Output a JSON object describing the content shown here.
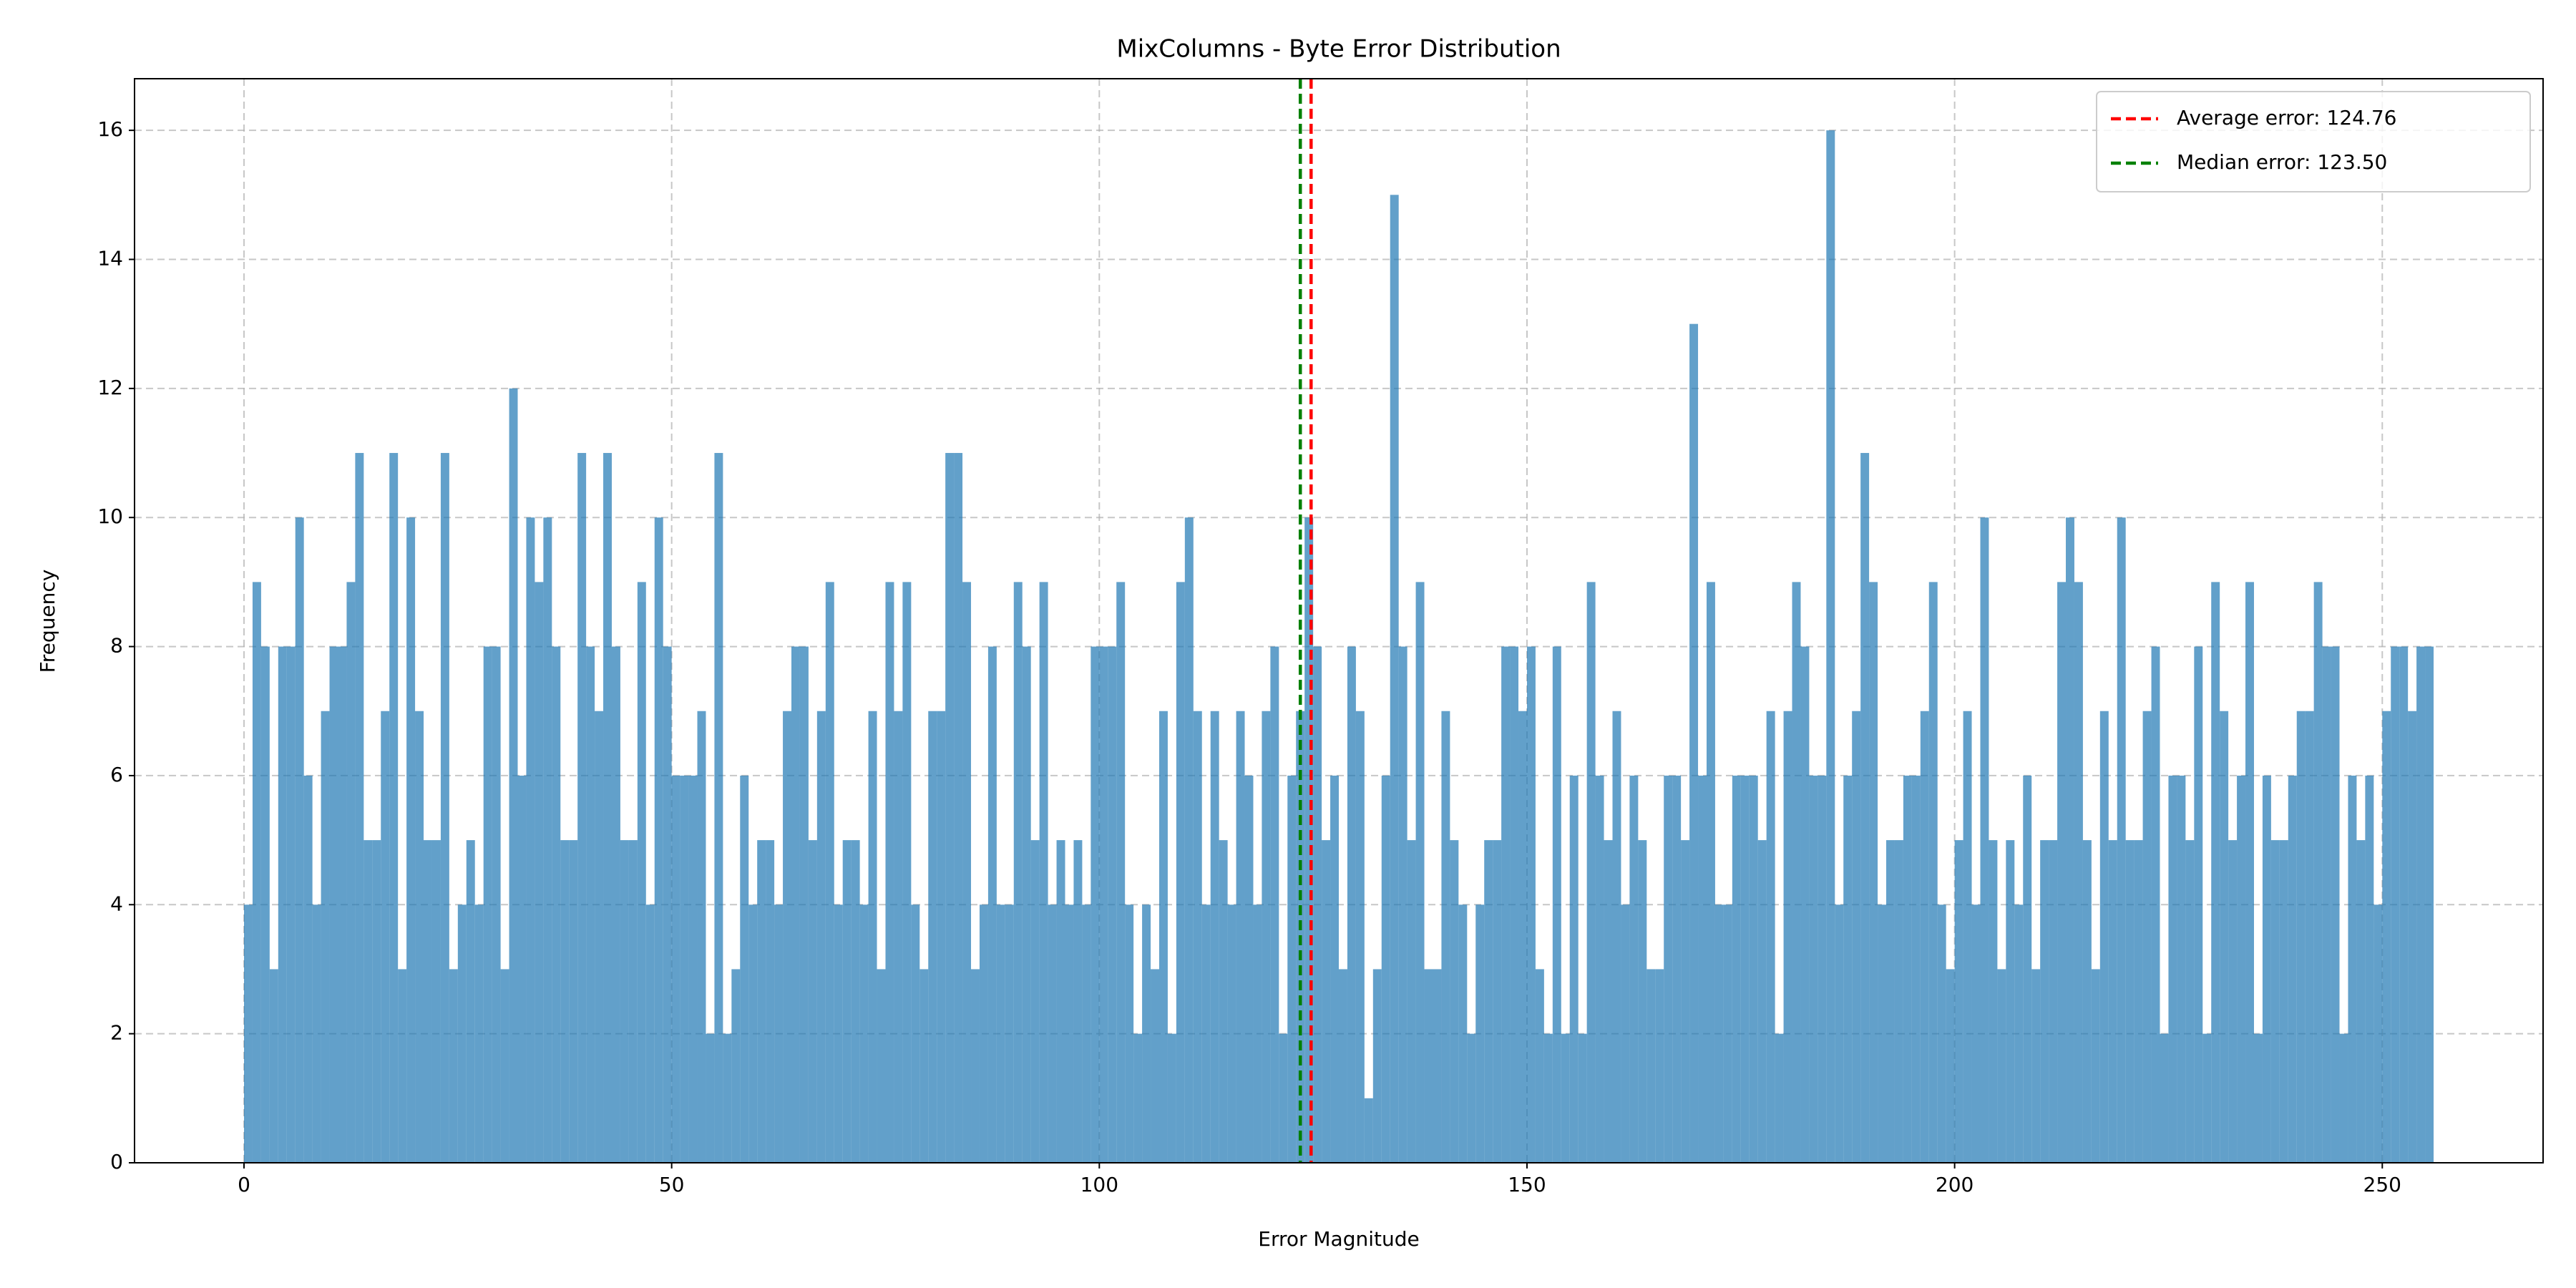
{
  "chart_data": {
    "type": "histogram",
    "title": "MixColumns - Byte Error Distribution",
    "xlabel": "Error Magnitude",
    "ylabel": "Frequency",
    "bins": [
      0,
      1,
      2,
      3,
      4,
      5,
      6,
      7,
      8,
      9,
      10,
      11,
      12,
      13,
      14,
      15,
      16,
      17,
      18,
      19,
      20,
      21,
      22,
      23,
      24,
      25,
      26,
      27,
      28,
      29,
      30,
      31,
      32,
      33,
      34,
      35,
      36,
      37,
      38,
      39,
      40,
      41,
      42,
      43,
      44,
      45,
      46,
      47,
      48,
      49,
      50,
      51,
      52,
      53,
      54,
      55,
      56,
      57,
      58,
      59,
      60,
      61,
      62,
      63,
      64,
      65,
      66,
      67,
      68,
      69,
      70,
      71,
      72,
      73,
      74,
      75,
      76,
      77,
      78,
      79,
      80,
      81,
      82,
      83,
      84,
      85,
      86,
      87,
      88,
      89,
      90,
      91,
      92,
      93,
      94,
      95,
      96,
      97,
      98,
      99,
      100,
      101,
      102,
      103,
      104,
      105,
      106,
      107,
      108,
      109,
      110,
      111,
      112,
      113,
      114,
      115,
      116,
      117,
      118,
      119,
      120,
      121,
      122,
      123,
      124,
      125,
      126,
      127,
      128,
      129,
      130,
      131,
      132,
      133,
      134,
      135,
      136,
      137,
      138,
      139,
      140,
      141,
      142,
      143,
      144,
      145,
      146,
      147,
      148,
      149,
      150,
      151,
      152,
      153,
      154,
      155,
      156,
      157,
      158,
      159,
      160,
      161,
      162,
      163,
      164,
      165,
      166,
      167,
      168,
      169,
      170,
      171,
      172,
      173,
      174,
      175,
      176,
      177,
      178,
      179,
      180,
      181,
      182,
      183,
      184,
      185,
      186,
      187,
      188,
      189,
      190,
      191,
      192,
      193,
      194,
      195,
      196,
      197,
      198,
      199,
      200,
      201,
      202,
      203,
      204,
      205,
      206,
      207,
      208,
      209,
      210,
      211,
      212,
      213,
      214,
      215,
      216,
      217,
      218,
      219,
      220,
      221,
      222,
      223,
      224,
      225,
      226,
      227,
      228,
      229,
      230,
      231,
      232,
      233,
      234,
      235,
      236,
      237,
      238,
      239,
      240,
      241,
      242,
      243,
      244,
      245,
      246,
      247,
      248,
      249,
      250,
      251,
      252,
      253,
      254,
      255,
      256
    ],
    "counts": [
      4,
      9,
      8,
      3,
      8,
      8,
      10,
      6,
      4,
      7,
      8,
      8,
      9,
      11,
      5,
      5,
      7,
      11,
      3,
      10,
      7,
      5,
      5,
      11,
      3,
      4,
      5,
      4,
      8,
      8,
      3,
      12,
      6,
      10,
      9,
      10,
      8,
      5,
      5,
      11,
      8,
      7,
      11,
      8,
      5,
      5,
      9,
      4,
      10,
      8,
      6,
      6,
      6,
      7,
      2,
      11,
      2,
      3,
      6,
      4,
      5,
      5,
      4,
      7,
      8,
      8,
      5,
      7,
      9,
      4,
      5,
      5,
      4,
      7,
      3,
      9,
      7,
      9,
      4,
      3,
      7,
      7,
      11,
      11,
      9,
      3,
      4,
      8,
      4,
      4,
      9,
      8,
      5,
      9,
      4,
      5,
      4,
      5,
      4,
      8,
      8,
      8,
      9,
      4,
      2,
      4,
      3,
      7,
      2,
      9,
      10,
      7,
      4,
      7,
      5,
      4,
      7,
      6,
      4,
      7,
      8,
      2,
      6,
      7,
      10,
      8,
      5,
      6,
      3,
      8,
      7,
      1,
      3,
      6,
      15,
      8,
      5,
      9,
      3,
      3,
      7,
      5,
      4,
      2,
      4,
      5,
      5,
      8,
      8,
      7,
      8,
      3,
      2,
      8,
      2,
      6,
      2,
      9,
      6,
      5,
      7,
      4,
      6,
      5,
      3,
      3,
      6,
      6,
      5,
      13,
      6,
      9,
      4,
      4,
      6,
      6,
      6,
      5,
      7,
      2,
      7,
      9,
      8,
      6,
      6,
      16,
      4,
      6,
      7,
      11,
      9,
      4,
      5,
      5,
      6,
      6,
      7,
      9,
      4,
      3,
      5,
      7,
      4,
      10,
      5,
      3,
      5,
      4,
      6,
      3,
      5,
      5,
      9,
      10,
      9,
      5,
      3,
      7,
      5,
      10,
      5,
      5,
      7,
      8,
      2,
      6,
      6,
      5,
      8,
      2,
      9,
      7,
      5,
      6,
      9,
      2,
      6,
      5,
      5,
      6,
      7,
      7,
      9,
      8,
      8,
      2,
      6,
      5,
      6,
      4,
      7,
      8,
      8,
      7,
      8,
      8
    ],
    "color": "#1f77b4",
    "alpha": 0.7,
    "vlines": [
      {
        "name": "Average error: 124.76",
        "value": 124.76,
        "color": "#ff0000"
      },
      {
        "name": "Median error: 123.50",
        "value": 123.5,
        "color": "#008000"
      }
    ],
    "xlim": [
      -12.8,
      268.8
    ],
    "xticks": [
      0,
      50,
      100,
      150,
      200,
      250
    ],
    "ylim": [
      0,
      16.8
    ],
    "yticks": [
      0,
      2,
      4,
      6,
      8,
      10,
      12,
      14,
      16
    ],
    "grid": true,
    "legend": "upper right"
  }
}
